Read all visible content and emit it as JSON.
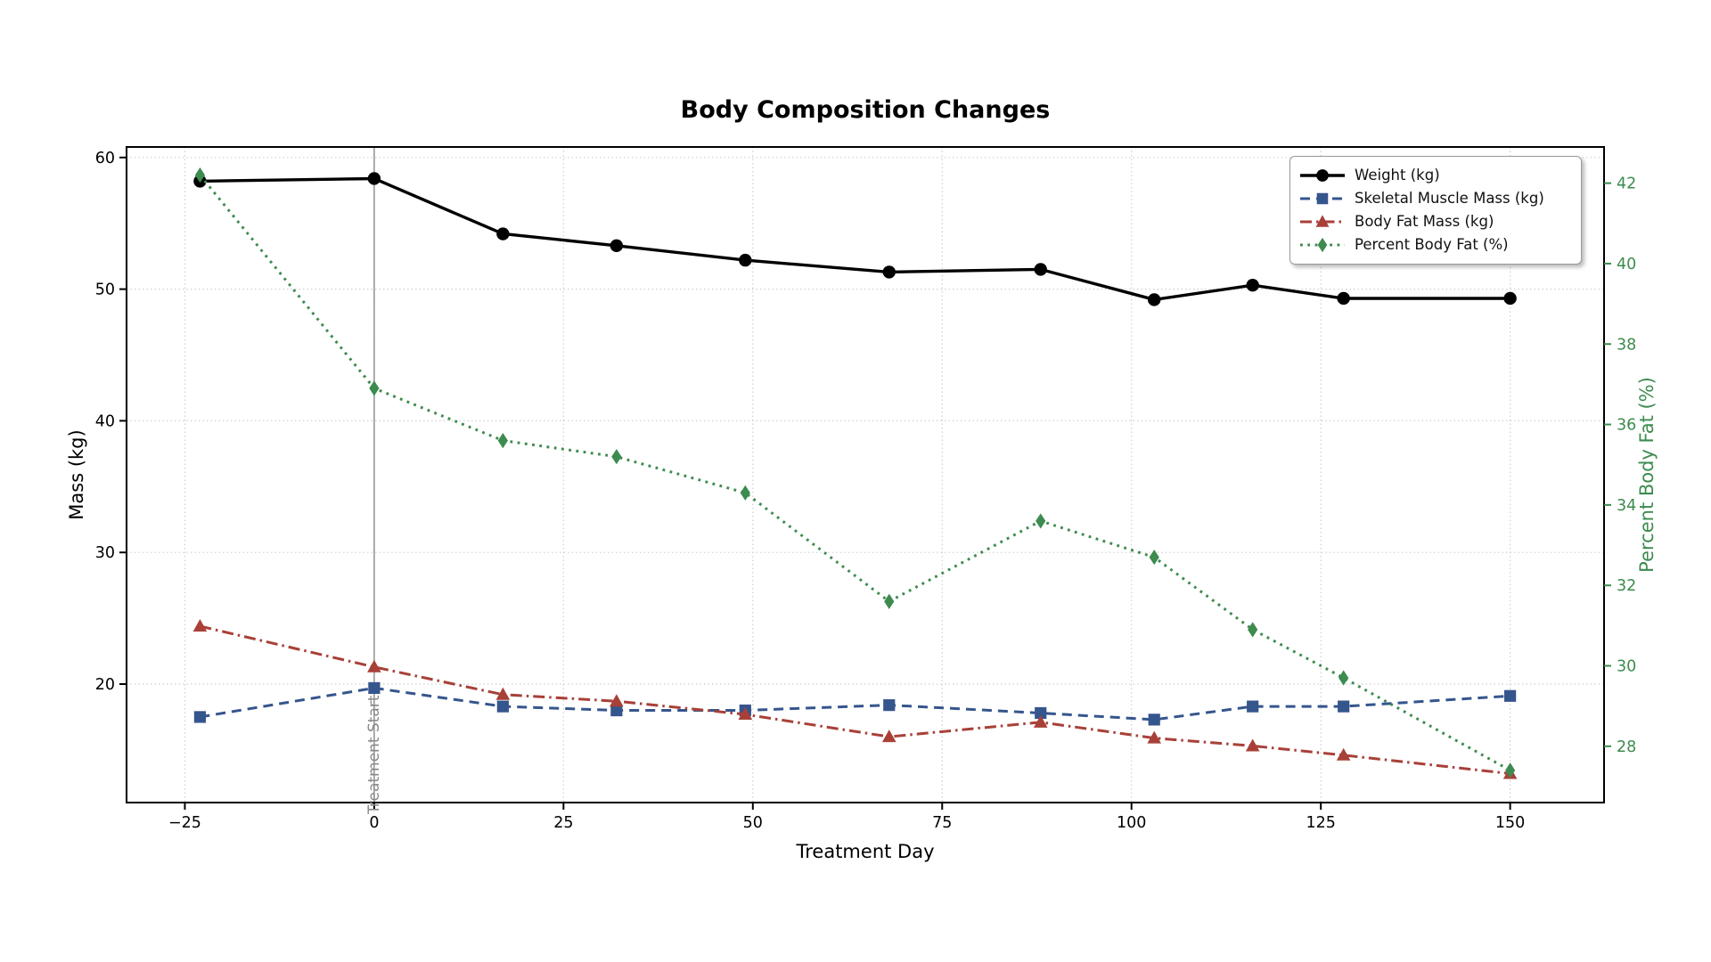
{
  "title": "Body Composition Changes",
  "axes": {
    "x_label": "Treatment Day",
    "y_left_label": "Mass (kg)",
    "y_right_label": "Percent Body Fat (%)"
  },
  "colors": {
    "weight": "#000000",
    "muscle": "#35558d",
    "fat_mass": "#a84038",
    "fat_pct": "#3d8b4f",
    "grid": "#cfcfcf",
    "spine": "#000000",
    "vline": "#999999",
    "annotation_text": "#888888",
    "right_axis_text": "#3d8b4f"
  },
  "chart_data": {
    "type": "line",
    "title": "Body Composition Changes",
    "xlabel": "Treatment Day",
    "ylabel_left": "Mass (kg)",
    "ylabel_right": "Percent Body Fat (%)",
    "x": [
      -23,
      0,
      17,
      32,
      49,
      68,
      88,
      103,
      116,
      128,
      150
    ],
    "series": [
      {
        "name": "Weight (kg)",
        "axis": "left",
        "color": "#000000",
        "linestyle": "solid",
        "marker": "circle",
        "values": [
          58.2,
          58.4,
          54.2,
          53.3,
          52.2,
          51.3,
          51.5,
          49.2,
          50.3,
          49.3,
          49.3
        ]
      },
      {
        "name": "Skeletal Muscle Mass (kg)",
        "axis": "left",
        "color": "#35558d",
        "linestyle": "dashed",
        "marker": "square",
        "values": [
          17.5,
          19.7,
          18.3,
          18.0,
          18.0,
          18.4,
          17.8,
          17.3,
          18.3,
          18.3,
          19.1
        ]
      },
      {
        "name": "Body Fat Mass (kg)",
        "axis": "left",
        "color": "#a84038",
        "linestyle": "dashdot",
        "marker": "triangle",
        "values": [
          24.4,
          21.3,
          19.2,
          18.7,
          17.7,
          16.0,
          17.1,
          15.9,
          15.3,
          14.6,
          13.2
        ]
      },
      {
        "name": "Percent Body Fat (%)",
        "axis": "right",
        "color": "#3d8b4f",
        "linestyle": "dotted",
        "marker": "diamond",
        "values": [
          42.2,
          36.9,
          35.6,
          35.2,
          34.3,
          31.6,
          33.6,
          32.7,
          30.9,
          29.7,
          27.4
        ]
      }
    ],
    "xticks": [
      -25,
      0,
      25,
      50,
      75,
      100,
      125,
      150
    ],
    "yticks_left": [
      20,
      30,
      40,
      50,
      60
    ],
    "yticks_right": [
      28,
      30,
      32,
      34,
      36,
      38,
      40,
      42
    ],
    "xlim": [
      -32.7,
      162.4
    ],
    "ylim_left": [
      11.0,
      60.8
    ],
    "ylim_right": [
      26.6,
      42.9
    ],
    "grid": true,
    "legend_position": "upper right",
    "vline": {
      "x": 0,
      "label": "Treatment Start"
    }
  }
}
